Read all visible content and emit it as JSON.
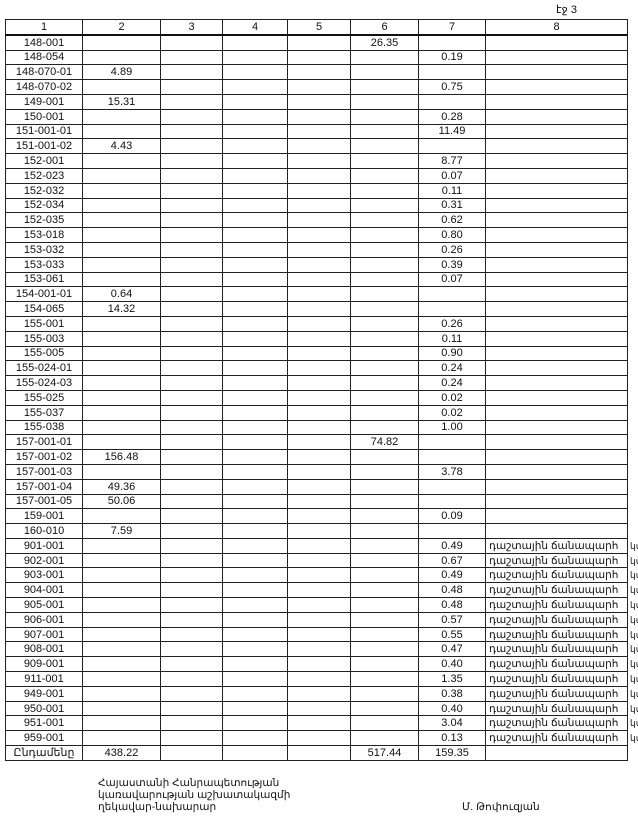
{
  "page_label": "էջ 3",
  "table": {
    "headers": [
      "1",
      "2",
      "3",
      "4",
      "5",
      "6",
      "7",
      "8"
    ],
    "rows": [
      [
        "148-001",
        "",
        "",
        "",
        "",
        "26.35",
        "",
        ""
      ],
      [
        "148-054",
        "",
        "",
        "",
        "",
        "",
        "0.19",
        ""
      ],
      [
        "148-070-01",
        "4.89",
        "",
        "",
        "",
        "",
        "",
        ""
      ],
      [
        "148-070-02",
        "",
        "",
        "",
        "",
        "",
        "0.75",
        ""
      ],
      [
        "149-001",
        "15.31",
        "",
        "",
        "",
        "",
        "",
        ""
      ],
      [
        "150-001",
        "",
        "",
        "",
        "",
        "",
        "0.28",
        ""
      ],
      [
        "151-001-01",
        "",
        "",
        "",
        "",
        "",
        "11.49",
        ""
      ],
      [
        "151-001-02",
        "4.43",
        "",
        "",
        "",
        "",
        "",
        ""
      ],
      [
        "152-001",
        "",
        "",
        "",
        "",
        "",
        "8.77",
        ""
      ],
      [
        "152-023",
        "",
        "",
        "",
        "",
        "",
        "0.07",
        ""
      ],
      [
        "152-032",
        "",
        "",
        "",
        "",
        "",
        "0.11",
        ""
      ],
      [
        "152-034",
        "",
        "",
        "",
        "",
        "",
        "0.31",
        ""
      ],
      [
        "152-035",
        "",
        "",
        "",
        "",
        "",
        "0.62",
        ""
      ],
      [
        "153-018",
        "",
        "",
        "",
        "",
        "",
        "0.80",
        ""
      ],
      [
        "153-032",
        "",
        "",
        "",
        "",
        "",
        "0.26",
        ""
      ],
      [
        "153-033",
        "",
        "",
        "",
        "",
        "",
        "0.39",
        ""
      ],
      [
        "153-061",
        "",
        "",
        "",
        "",
        "",
        "0.07",
        ""
      ],
      [
        "154-001-01",
        "0.64",
        "",
        "",
        "",
        "",
        "",
        ""
      ],
      [
        "154-065",
        "14.32",
        "",
        "",
        "",
        "",
        "",
        ""
      ],
      [
        "155-001",
        "",
        "",
        "",
        "",
        "",
        "0.26",
        ""
      ],
      [
        "155-003",
        "",
        "",
        "",
        "",
        "",
        "0.11",
        ""
      ],
      [
        "155-005",
        "",
        "",
        "",
        "",
        "",
        "0.90",
        ""
      ],
      [
        "155-024-01",
        "",
        "",
        "",
        "",
        "",
        "0.24",
        ""
      ],
      [
        "155-024-03",
        "",
        "",
        "",
        "",
        "",
        "0.24",
        ""
      ],
      [
        "155-025",
        "",
        "",
        "",
        "",
        "",
        "0.02",
        ""
      ],
      [
        "155-037",
        "",
        "",
        "",
        "",
        "",
        "0.02",
        ""
      ],
      [
        "155-038",
        "",
        "",
        "",
        "",
        "",
        "1.00",
        ""
      ],
      [
        "157-001-01",
        "",
        "",
        "",
        "",
        "74.82",
        "",
        ""
      ],
      [
        "157-001-02",
        "156.48",
        "",
        "",
        "",
        "",
        "",
        ""
      ],
      [
        "157-001-03",
        "",
        "",
        "",
        "",
        "",
        "3.78",
        ""
      ],
      [
        "157-001-04",
        "49.36",
        "",
        "",
        "",
        "",
        "",
        ""
      ],
      [
        "157-001-05",
        "50.06",
        "",
        "",
        "",
        "",
        "",
        ""
      ],
      [
        "159-001",
        "",
        "",
        "",
        "",
        "",
        "0.09",
        ""
      ],
      [
        "160-010",
        "7.59",
        "",
        "",
        "",
        "",
        "",
        ""
      ],
      [
        "901-001",
        "",
        "",
        "",
        "",
        "",
        "0.49",
        "դաշտային ճանապարհ"
      ],
      [
        "902-001",
        "",
        "",
        "",
        "",
        "",
        "0.67",
        "դաշտային ճանապարհ"
      ],
      [
        "903-001",
        "",
        "",
        "",
        "",
        "",
        "0.49",
        "դաշտային ճանապարհ"
      ],
      [
        "904-001",
        "",
        "",
        "",
        "",
        "",
        "0.48",
        "դաշտային ճանապարհ"
      ],
      [
        "905-001",
        "",
        "",
        "",
        "",
        "",
        "0.48",
        "դաշտային ճանապարհ"
      ],
      [
        "906-001",
        "",
        "",
        "",
        "",
        "",
        "0.57",
        "դաշտային ճանապարհ"
      ],
      [
        "907-001",
        "",
        "",
        "",
        "",
        "",
        "0.55",
        "դաշտային ճանապարհ"
      ],
      [
        "908-001",
        "",
        "",
        "",
        "",
        "",
        "0.47",
        "դաշտային ճանապարհ"
      ],
      [
        "909-001",
        "",
        "",
        "",
        "",
        "",
        "0.40",
        "դաշտային ճանապարհ"
      ],
      [
        "911-001",
        "",
        "",
        "",
        "",
        "",
        "1.35",
        "դաշտային ճանապարհ"
      ],
      [
        "949-001",
        "",
        "",
        "",
        "",
        "",
        "0.38",
        "դաշտային ճանապարհ"
      ],
      [
        "950-001",
        "",
        "",
        "",
        "",
        "",
        "0.40",
        "դաշտային ճանապարհ"
      ],
      [
        "951-001",
        "",
        "",
        "",
        "",
        "",
        "3.04",
        "դաշտային ճանապարհ"
      ],
      [
        "959-001",
        "",
        "",
        "",
        "",
        "",
        "0.13",
        "դաշտային ճանապարհ"
      ]
    ],
    "unit_suffix": "կմ",
    "total": [
      "Ընդամենը",
      "438.22",
      "",
      "",
      "",
      "517.44",
      "159.35",
      ""
    ]
  },
  "footer": {
    "position_line1": "Հայաստանի Հանրապետության",
    "position_line2": "կառավարության աշխատակազմի",
    "position_line3": "ղեկավար-նախարար",
    "signatory": "Մ. Թոփուզյան"
  }
}
